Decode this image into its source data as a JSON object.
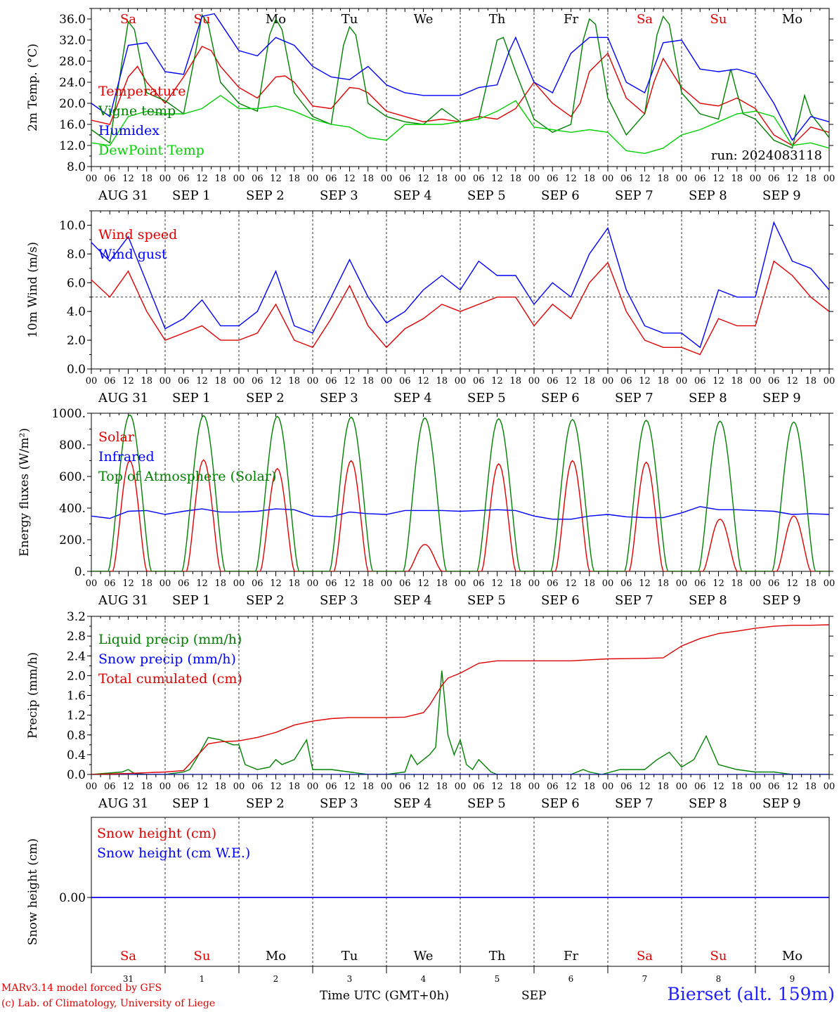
{
  "run_label": "run: 2024083118",
  "days": [
    {
      "abbr": "Sa",
      "color": "#e00000",
      "date": "AUG 31",
      "num": "31"
    },
    {
      "abbr": "Su",
      "color": "#e00000",
      "date": "SEP  1",
      "num": "1"
    },
    {
      "abbr": "Mo",
      "color": "#000000",
      "date": "SEP  2",
      "num": "2"
    },
    {
      "abbr": "Tu",
      "color": "#000000",
      "date": "SEP  3",
      "num": "3"
    },
    {
      "abbr": "We",
      "color": "#000000",
      "date": "SEP  4",
      "num": "4"
    },
    {
      "abbr": "Th",
      "color": "#000000",
      "date": "SEP  5",
      "num": "5"
    },
    {
      "abbr": "Fr",
      "color": "#000000",
      "date": "SEP  6",
      "num": "6"
    },
    {
      "abbr": "Sa",
      "color": "#e00000",
      "date": "SEP  7",
      "num": "7"
    },
    {
      "abbr": "Su",
      "color": "#e00000",
      "date": "SEP  8",
      "num": "8"
    },
    {
      "abbr": "Mo",
      "color": "#000000",
      "date": "SEP  9",
      "num": "9"
    }
  ],
  "hour_ticks": [
    "00",
    "06",
    "12",
    "18"
  ],
  "footer": {
    "line1": "MARv3.14 model forced by GFS",
    "line2": "(c) Lab. of Climatology, University of Liege",
    "time_label": "Time UTC (GMT+0h)",
    "month_label": "SEP",
    "station": "Bierset (alt. 159m)"
  },
  "chart_data": [
    {
      "type": "line",
      "ylabel": "2m Temp. (°C)",
      "ylim": [
        8,
        38
      ],
      "yticks": [
        "8.0",
        "12.0",
        "16.0",
        "20.0",
        "24.0",
        "28.0",
        "32.0",
        "36.0"
      ],
      "x_unit": "hours since AUG 31 00 UTC",
      "series": [
        {
          "name": "Temperature",
          "color": "#e00000",
          "x": [
            0,
            6,
            12,
            15,
            18,
            24,
            30,
            36,
            39,
            42,
            48,
            54,
            60,
            63,
            66,
            72,
            78,
            84,
            87,
            90,
            96,
            102,
            108,
            114,
            120,
            126,
            132,
            135,
            138,
            144,
            150,
            156,
            159,
            162,
            168,
            174,
            180,
            183,
            186,
            192,
            198,
            204,
            210,
            216,
            222,
            228,
            234,
            240
          ],
          "y": [
            16.8,
            16.0,
            25.0,
            27.0,
            24.0,
            20.0,
            25.0,
            30.8,
            30.0,
            27.0,
            23.0,
            21.0,
            25.0,
            25.2,
            24.0,
            19.5,
            19.0,
            23.0,
            22.8,
            22.0,
            18.5,
            17.5,
            16.5,
            17.0,
            16.5,
            17.5,
            17.0,
            18.0,
            19.0,
            24.0,
            20.0,
            17.5,
            20.0,
            26.0,
            29.5,
            21.0,
            18.0,
            24.0,
            28.5,
            23.0,
            20.0,
            19.5,
            21.0,
            19.0,
            14.0,
            12.0,
            15.5,
            14.5
          ]
        },
        {
          "name": "Vigne temp",
          "color": "#008000",
          "x": [
            0,
            6,
            10,
            12,
            14,
            18,
            24,
            30,
            34,
            36,
            38,
            42,
            48,
            54,
            58,
            60,
            62,
            66,
            72,
            78,
            82,
            84,
            86,
            90,
            96,
            102,
            108,
            114,
            120,
            126,
            130,
            132,
            134,
            138,
            144,
            150,
            156,
            160,
            162,
            164,
            168,
            174,
            180,
            184,
            186,
            188,
            192,
            198,
            204,
            208,
            210,
            212,
            216,
            222,
            228,
            232,
            234,
            240
          ],
          "y": [
            15.0,
            12.5,
            28.0,
            35.5,
            34.0,
            22.0,
            20.5,
            18.0,
            30.0,
            36.8,
            35.0,
            24.0,
            20.0,
            18.5,
            33.0,
            36.0,
            34.0,
            22.0,
            17.5,
            16.0,
            31.0,
            34.5,
            33.0,
            20.0,
            17.5,
            16.5,
            16.0,
            19.0,
            16.5,
            17.0,
            27.0,
            32.0,
            32.5,
            26.0,
            17.0,
            14.5,
            16.0,
            32.0,
            36.0,
            35.0,
            21.0,
            14.0,
            18.0,
            33.0,
            36.5,
            35.0,
            22.0,
            18.0,
            17.0,
            26.5,
            22.0,
            18.0,
            17.0,
            13.0,
            11.5,
            21.5,
            18.0,
            13.5
          ]
        },
        {
          "name": "Humidex",
          "color": "#0000ff",
          "x": [
            0,
            6,
            12,
            18,
            24,
            30,
            36,
            40,
            44,
            48,
            54,
            60,
            66,
            72,
            78,
            84,
            90,
            96,
            102,
            108,
            114,
            120,
            126,
            132,
            136,
            138,
            144,
            150,
            156,
            162,
            168,
            174,
            180,
            186,
            192,
            198,
            204,
            210,
            216,
            222,
            228,
            234,
            240
          ],
          "y": [
            20.0,
            17.5,
            31.0,
            31.5,
            26.0,
            25.5,
            36.5,
            37.0,
            33.5,
            30.0,
            29.0,
            32.5,
            31.0,
            27.0,
            25.0,
            24.5,
            27.0,
            23.5,
            22.0,
            21.5,
            21.5,
            21.5,
            23.0,
            23.5,
            30.0,
            32.5,
            24.0,
            22.0,
            29.5,
            32.5,
            32.5,
            24.0,
            22.0,
            31.5,
            32.0,
            26.5,
            26.0,
            26.5,
            25.5,
            20.0,
            13.0,
            17.5,
            16.5
          ]
        },
        {
          "name": "DewPoint Temp",
          "color": "#00d000",
          "x": [
            0,
            6,
            12,
            18,
            24,
            30,
            36,
            42,
            48,
            54,
            60,
            66,
            72,
            78,
            84,
            90,
            96,
            102,
            108,
            114,
            120,
            126,
            132,
            138,
            144,
            150,
            156,
            162,
            168,
            174,
            180,
            186,
            192,
            198,
            204,
            210,
            216,
            222,
            228,
            234,
            240
          ],
          "y": [
            12.5,
            12.0,
            17.5,
            18.5,
            18.0,
            18.0,
            19.0,
            21.5,
            19.0,
            19.0,
            19.5,
            18.5,
            17.0,
            16.0,
            15.5,
            13.5,
            13.0,
            16.0,
            16.0,
            16.0,
            16.5,
            17.0,
            18.5,
            20.5,
            15.5,
            15.0,
            14.5,
            15.0,
            14.5,
            11.0,
            10.5,
            11.5,
            14.0,
            15.0,
            16.5,
            18.0,
            18.5,
            17.5,
            12.0,
            12.5,
            11.5
          ]
        }
      ]
    },
    {
      "type": "line",
      "ylabel": "10m Wind (m/s)",
      "ylim": [
        0,
        11
      ],
      "yticks": [
        "0.0",
        "2.0",
        "4.0",
        "6.0",
        "8.0",
        "10.0"
      ],
      "reference_line": 5.0,
      "series": [
        {
          "name": "Wind speed",
          "color": "#e00000",
          "x": [
            0,
            6,
            12,
            18,
            24,
            30,
            36,
            42,
            48,
            54,
            60,
            66,
            72,
            78,
            84,
            90,
            96,
            102,
            108,
            114,
            120,
            126,
            132,
            138,
            144,
            150,
            156,
            162,
            168,
            174,
            180,
            186,
            192,
            198,
            204,
            210,
            216,
            222,
            228,
            234,
            240
          ],
          "y": [
            6.2,
            5.0,
            6.8,
            4.0,
            2.0,
            2.5,
            3.0,
            2.0,
            2.0,
            2.5,
            4.5,
            2.0,
            1.5,
            3.5,
            5.8,
            3.0,
            1.5,
            2.8,
            3.5,
            4.5,
            4.0,
            4.5,
            5.0,
            5.0,
            3.0,
            4.5,
            3.5,
            6.0,
            7.4,
            4.0,
            2.0,
            1.5,
            1.5,
            1.0,
            3.5,
            3.0,
            3.0,
            7.5,
            6.5,
            5.0,
            4.0
          ]
        },
        {
          "name": "Wind gust",
          "color": "#0000ff",
          "x": [
            0,
            6,
            12,
            18,
            24,
            30,
            36,
            42,
            48,
            54,
            60,
            66,
            72,
            78,
            84,
            90,
            96,
            102,
            108,
            114,
            120,
            126,
            132,
            138,
            144,
            150,
            156,
            162,
            168,
            174,
            180,
            186,
            192,
            198,
            204,
            210,
            216,
            222,
            228,
            234,
            240
          ],
          "y": [
            8.8,
            7.5,
            9.2,
            6.0,
            2.8,
            3.5,
            4.8,
            3.0,
            3.0,
            4.0,
            6.8,
            3.0,
            2.5,
            5.0,
            7.6,
            5.0,
            3.2,
            4.0,
            5.5,
            6.5,
            5.5,
            7.5,
            6.5,
            6.5,
            4.5,
            6.0,
            5.0,
            8.0,
            9.8,
            5.5,
            3.0,
            2.5,
            2.5,
            1.5,
            5.5,
            5.0,
            5.0,
            10.2,
            7.5,
            7.0,
            5.5
          ]
        }
      ]
    },
    {
      "type": "line",
      "ylabel": "Energy fluxes (W/m²)",
      "ylim": [
        0,
        1000
      ],
      "yticks": [
        "0.",
        "200.",
        "400.",
        "600.",
        "800.",
        "1000."
      ],
      "series": [
        {
          "name": "Solar",
          "color": "#e00000",
          "peaks": [
            700,
            705,
            650,
            700,
            170,
            680,
            700,
            690,
            330,
            350
          ]
        },
        {
          "name": "Infrared",
          "color": "#0000ff",
          "x": [
            0,
            6,
            12,
            18,
            24,
            30,
            36,
            42,
            48,
            54,
            60,
            66,
            72,
            78,
            84,
            90,
            96,
            102,
            108,
            114,
            120,
            126,
            132,
            138,
            144,
            150,
            156,
            162,
            168,
            174,
            180,
            186,
            192,
            198,
            204,
            210,
            216,
            222,
            228,
            234,
            240
          ],
          "y": [
            350,
            335,
            380,
            385,
            360,
            380,
            395,
            375,
            375,
            380,
            395,
            390,
            350,
            345,
            375,
            365,
            360,
            385,
            385,
            385,
            380,
            385,
            390,
            385,
            350,
            330,
            330,
            350,
            360,
            345,
            340,
            340,
            370,
            410,
            390,
            390,
            385,
            380,
            360,
            365,
            360
          ]
        },
        {
          "name": "Top of Atmosphere (Solar)",
          "color": "#008000",
          "peaks": [
            990,
            985,
            980,
            975,
            970,
            965,
            960,
            955,
            950,
            945
          ]
        }
      ]
    },
    {
      "type": "line",
      "ylabel": "Precip (mm/h)",
      "ylim": [
        0,
        3.2
      ],
      "yticks": [
        "0.0",
        "0.4",
        "0.8",
        "1.2",
        "1.6",
        "2.0",
        "2.4",
        "2.8",
        "3.2"
      ],
      "series": [
        {
          "name": "Liquid precip (mm/h)",
          "color": "#008000",
          "x": [
            0,
            10,
            12,
            14,
            18,
            24,
            30,
            32,
            34,
            38,
            42,
            46,
            48,
            50,
            54,
            58,
            60,
            62,
            66,
            70,
            72,
            78,
            84,
            90,
            96,
            102,
            104,
            106,
            108,
            110,
            112,
            114,
            116,
            118,
            120,
            122,
            124,
            126,
            130,
            132,
            144,
            156,
            160,
            162,
            166,
            172,
            180,
            184,
            188,
            190,
            192,
            196,
            200,
            204,
            210,
            216,
            222,
            228,
            234,
            240
          ],
          "y": [
            0.0,
            0.05,
            0.1,
            0.02,
            0.0,
            0.0,
            0.05,
            0.1,
            0.3,
            0.75,
            0.7,
            0.6,
            0.6,
            0.2,
            0.1,
            0.15,
            0.3,
            0.2,
            0.3,
            0.7,
            0.1,
            0.1,
            0.05,
            0.0,
            0.0,
            0.05,
            0.4,
            0.2,
            0.3,
            0.4,
            0.55,
            2.1,
            0.8,
            0.4,
            0.7,
            0.2,
            0.1,
            0.3,
            0.05,
            0.0,
            0.0,
            0.0,
            0.1,
            0.05,
            0.0,
            0.1,
            0.1,
            0.3,
            0.45,
            0.3,
            0.15,
            0.3,
            0.78,
            0.2,
            0.1,
            0.05,
            0.05,
            0.0,
            0.0,
            0.0
          ]
        },
        {
          "name": "Snow precip (mm/h)",
          "color": "#0000ff",
          "x": [
            0,
            240
          ],
          "y": [
            0.0,
            0.0
          ]
        },
        {
          "name": "Total cumulated (cm)",
          "color": "#e00000",
          "x": [
            0,
            12,
            24,
            30,
            34,
            38,
            42,
            48,
            54,
            60,
            66,
            72,
            78,
            84,
            90,
            96,
            102,
            108,
            110,
            114,
            116,
            120,
            126,
            132,
            144,
            156,
            168,
            180,
            186,
            192,
            198,
            204,
            210,
            216,
            222,
            228,
            234,
            240
          ],
          "y": [
            0.0,
            0.02,
            0.05,
            0.08,
            0.35,
            0.62,
            0.66,
            0.68,
            0.75,
            0.85,
            1.0,
            1.08,
            1.13,
            1.15,
            1.15,
            1.15,
            1.16,
            1.25,
            1.4,
            1.8,
            1.95,
            2.05,
            2.25,
            2.3,
            2.3,
            2.3,
            2.34,
            2.35,
            2.36,
            2.6,
            2.75,
            2.85,
            2.9,
            2.96,
            3.0,
            3.02,
            3.02,
            3.03
          ]
        }
      ]
    },
    {
      "type": "line",
      "ylabel": "Snow height (cm)",
      "yticks": [
        "0.00"
      ],
      "series": [
        {
          "name": "Snow height (cm)",
          "color": "#e00000",
          "x": [
            0,
            240
          ],
          "y": [
            0.0,
            0.0
          ]
        },
        {
          "name": "Snow height (cm W.E.)",
          "color": "#0000ff",
          "x": [
            0,
            240
          ],
          "y": [
            0.0,
            0.0
          ]
        }
      ]
    }
  ]
}
